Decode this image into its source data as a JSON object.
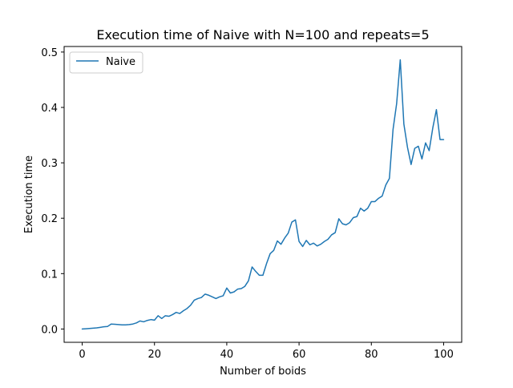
{
  "chart_data": {
    "type": "line",
    "title": "Execution time of Naive with N=100 and repeats=5",
    "xlabel": "Number of boids",
    "ylabel": "Execution time",
    "xlim": [
      -5,
      105
    ],
    "ylim": [
      -0.024,
      0.51
    ],
    "xticks": [
      0,
      20,
      40,
      60,
      80,
      100
    ],
    "yticks": [
      0.0,
      0.1,
      0.2,
      0.3,
      0.4,
      0.5
    ],
    "xtick_labels": [
      "0",
      "20",
      "40",
      "60",
      "80",
      "100"
    ],
    "ytick_labels": [
      "0.0",
      "0.1",
      "0.2",
      "0.3",
      "0.4",
      "0.5"
    ],
    "grid": false,
    "legend": {
      "position": "top-left",
      "entries": [
        "Naive"
      ]
    },
    "colors": {
      "series": "#1f77b4"
    },
    "series": [
      {
        "name": "Naive",
        "x": [
          0,
          1,
          2,
          3,
          4,
          5,
          6,
          7,
          8,
          9,
          10,
          11,
          12,
          13,
          14,
          15,
          16,
          17,
          18,
          19,
          20,
          21,
          22,
          23,
          24,
          25,
          26,
          27,
          28,
          29,
          30,
          31,
          32,
          33,
          34,
          35,
          36,
          37,
          38,
          39,
          40,
          41,
          42,
          43,
          44,
          45,
          46,
          47,
          48,
          49,
          50,
          51,
          52,
          53,
          54,
          55,
          56,
          57,
          58,
          59,
          60,
          61,
          62,
          63,
          64,
          65,
          66,
          67,
          68,
          69,
          70,
          71,
          72,
          73,
          74,
          75,
          76,
          77,
          78,
          79,
          80,
          81,
          82,
          83,
          84,
          85,
          86,
          87,
          88,
          89,
          90,
          91,
          92,
          93,
          94,
          95,
          96,
          97,
          98,
          99,
          100
        ],
        "values": [
          0.0,
          0.0005,
          0.001,
          0.0015,
          0.002,
          0.003,
          0.004,
          0.0045,
          0.009,
          0.0085,
          0.008,
          0.0075,
          0.0075,
          0.008,
          0.009,
          0.011,
          0.0145,
          0.013,
          0.0155,
          0.017,
          0.016,
          0.024,
          0.019,
          0.024,
          0.023,
          0.026,
          0.03,
          0.028,
          0.033,
          0.037,
          0.043,
          0.052,
          0.055,
          0.057,
          0.063,
          0.061,
          0.058,
          0.055,
          0.058,
          0.06,
          0.074,
          0.065,
          0.067,
          0.072,
          0.073,
          0.077,
          0.087,
          0.112,
          0.104,
          0.097,
          0.097,
          0.118,
          0.136,
          0.142,
          0.159,
          0.153,
          0.164,
          0.173,
          0.193,
          0.197,
          0.158,
          0.149,
          0.16,
          0.152,
          0.155,
          0.15,
          0.153,
          0.158,
          0.162,
          0.17,
          0.174,
          0.199,
          0.19,
          0.188,
          0.192,
          0.201,
          0.203,
          0.218,
          0.213,
          0.218,
          0.23,
          0.23,
          0.236,
          0.24,
          0.26,
          0.272,
          0.36,
          0.407,
          0.486,
          0.37,
          0.328,
          0.297,
          0.326,
          0.33,
          0.307,
          0.336,
          0.322,
          0.363,
          0.396,
          0.342,
          0.342
        ]
      }
    ]
  }
}
